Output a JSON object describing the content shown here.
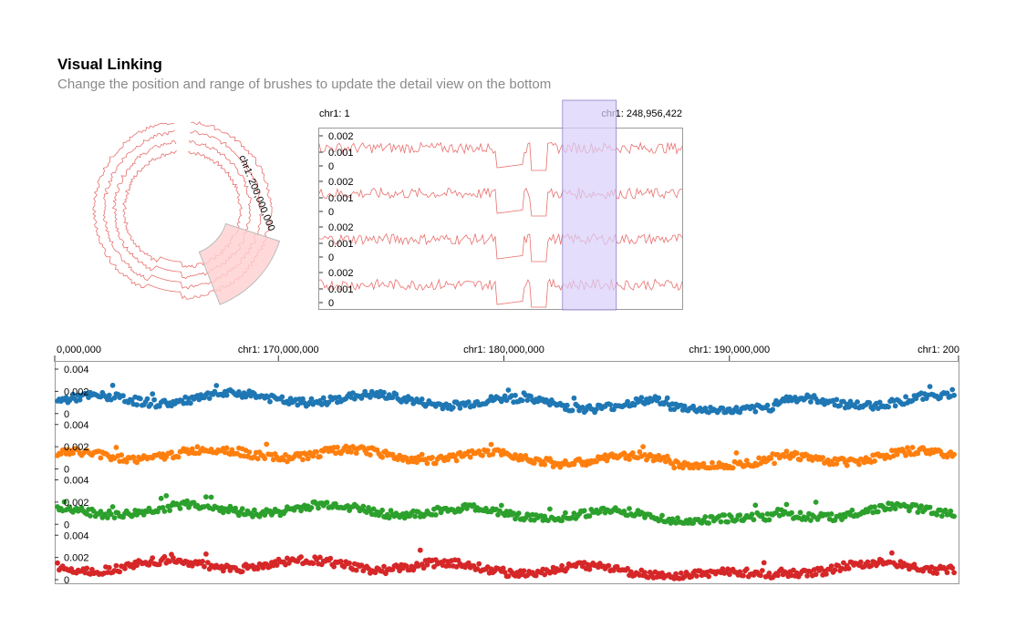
{
  "header": {
    "title": "Visual Linking",
    "subtitle": "Change the position and range of brushes to update the detail view on the bottom"
  },
  "colors": {
    "overview_line": "#e8706e",
    "brush_fill": "#d9cff9",
    "circular_brush_fill": "#ffd0d0",
    "series": [
      "#1f77b4",
      "#ff7f0e",
      "#2ca02c",
      "#d62728"
    ]
  },
  "circular_view": {
    "label": "chr1: 200,000,000",
    "tracks": 4
  },
  "overview": {
    "start_label": "chr1: 1",
    "end_label": "chr1: 248,956,422",
    "tracks": 4,
    "y_ticks": [
      "0.002",
      "0.001",
      "0"
    ],
    "brush_range": [
      160000000,
      200000000
    ]
  },
  "chart_data": {
    "type": "scatter",
    "x_axis_labels": [
      "0,000,000",
      "chr1: 170,000,000",
      "chr1: 180,000,000",
      "chr1: 190,000,000",
      "chr1: 200"
    ],
    "x_ticks": [
      160000000,
      170000000,
      180000000,
      190000000,
      200000000
    ],
    "xlim": [
      160000000,
      200000000
    ],
    "ylim": [
      0,
      0.004
    ],
    "y_ticks": [
      "0.004",
      "0.002",
      "0"
    ],
    "series": [
      {
        "color": "#1f77b4"
      },
      {
        "color": "#ff7f0e"
      },
      {
        "color": "#2ca02c"
      },
      {
        "color": "#d62728"
      }
    ]
  }
}
